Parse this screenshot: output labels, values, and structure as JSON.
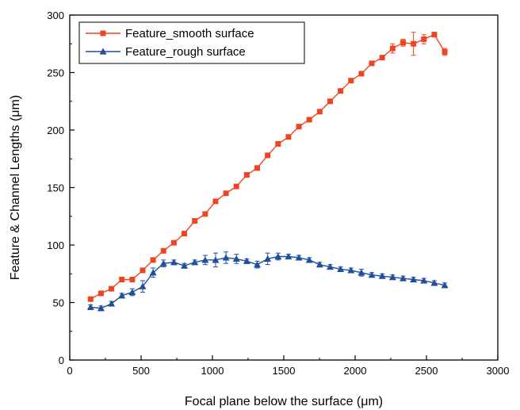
{
  "chart_data": {
    "type": "line",
    "xlabel": "Focal plane below the surface (μm)",
    "ylabel": "Feature & Channel Lengths (μm)",
    "xlim": [
      0,
      3000
    ],
    "ylim": [
      0,
      300
    ],
    "xticks": [
      0,
      500,
      1000,
      1500,
      2000,
      2500,
      3000
    ],
    "yticks": [
      0,
      50,
      100,
      150,
      200,
      250,
      300
    ],
    "grid": false,
    "legend_position": "top-left",
    "series": [
      {
        "name": "Feature_smooth surface",
        "color": "#ee4422",
        "marker": "square",
        "x": [
          146,
          219,
          292,
          365,
          438,
          511,
          584,
          657,
          730,
          803,
          876,
          949,
          1022,
          1095,
          1168,
          1241,
          1314,
          1387,
          1460,
          1533,
          1606,
          1679,
          1752,
          1825,
          1898,
          1971,
          2044,
          2117,
          2190,
          2263,
          2336,
          2409,
          2482,
          2555,
          2628
        ],
        "y": [
          53,
          58,
          62,
          70,
          70,
          78,
          87,
          95,
          102,
          110,
          121,
          127,
          138,
          145,
          151,
          161,
          167,
          178,
          188,
          194,
          203,
          209,
          216,
          225,
          234,
          243,
          249,
          258,
          263,
          271,
          276,
          275,
          279,
          283,
          268
        ],
        "err": [
          0,
          0,
          0,
          0,
          0,
          0,
          0,
          0,
          0,
          0,
          0,
          0,
          0,
          0,
          0,
          0,
          0,
          0,
          0,
          0,
          0,
          0,
          0,
          0,
          0,
          0,
          0,
          0,
          0,
          4,
          3,
          10,
          4,
          2,
          3
        ]
      },
      {
        "name": "Feature_rough surface",
        "color": "#1f4e9c",
        "marker": "triangle",
        "x": [
          146,
          219,
          292,
          365,
          438,
          511,
          584,
          657,
          730,
          803,
          876,
          949,
          1022,
          1095,
          1168,
          1241,
          1314,
          1387,
          1460,
          1533,
          1606,
          1679,
          1752,
          1825,
          1898,
          1971,
          2044,
          2117,
          2190,
          2263,
          2336,
          2409,
          2482,
          2555,
          2628
        ],
        "y": [
          46,
          45,
          49,
          56,
          59,
          64,
          76,
          84,
          85,
          82,
          85,
          87,
          87,
          89,
          88,
          86,
          83,
          88,
          90,
          90,
          89,
          87,
          83,
          81,
          79,
          78,
          76,
          74,
          73,
          72,
          71,
          70,
          69,
          67,
          65
        ],
        "err": [
          2,
          2,
          2,
          2,
          3,
          5,
          4,
          3,
          2,
          2,
          2,
          4,
          6,
          5,
          4,
          2,
          3,
          5,
          3,
          2,
          2,
          2,
          2,
          2,
          2,
          2,
          3,
          2,
          2,
          2,
          2,
          2,
          2,
          2,
          2
        ]
      }
    ]
  }
}
